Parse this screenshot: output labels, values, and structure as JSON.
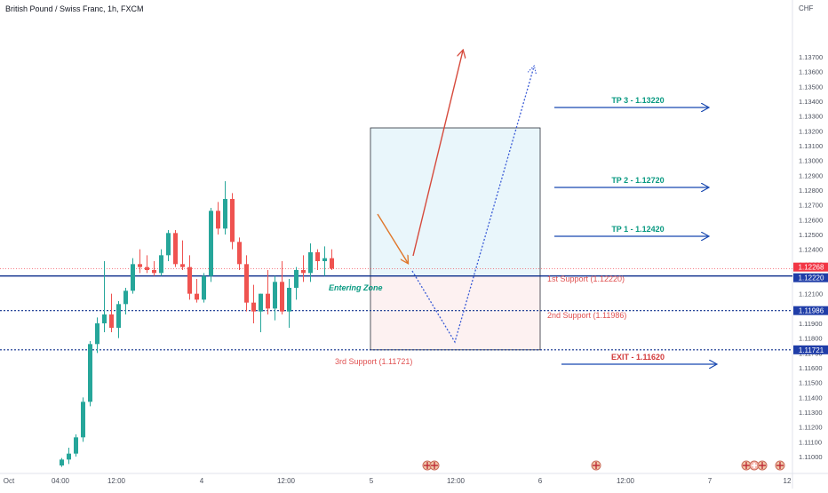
{
  "header": {
    "title": "British Pound / Swiss Franc, 1h, FXCM"
  },
  "colors": {
    "up": "#26a69a",
    "down": "#ef5350",
    "dark_blue": "#0d2e8c",
    "line_blue": "#1848b0",
    "tp_teal": "#089981",
    "support_red": "#e05252",
    "tp_box_fill": "#e9f6fb",
    "sl_box_fill": "#fdf1f1",
    "price_blue": "#1f3da8",
    "price_red": "#f23645",
    "arrow_red": "#d64a3c",
    "arrow_orange": "#e0762a",
    "dotted_blue": "#3a5bd6"
  },
  "chart_data": {
    "type": "candlestick",
    "currency_label": "CHF",
    "y_axis": {
      "ylim": [
        1.1094,
        1.1388
      ],
      "ticks": [
        "1.13700",
        "1.13600",
        "1.13500",
        "1.13400",
        "1.13300",
        "1.13200",
        "1.13100",
        "1.13000",
        "1.12900",
        "1.12800",
        "1.12700",
        "1.12600",
        "1.12500",
        "1.12400",
        "1.12300",
        "1.12200",
        "1.12100",
        "1.12000",
        "1.11900",
        "1.11800",
        "1.11700",
        "1.11600",
        "1.11500",
        "1.11400",
        "1.11300",
        "1.11200",
        "1.11100",
        "1.11000"
      ]
    },
    "x_axis": {
      "ticks": [
        "Oct",
        "04:00",
        "12:00",
        "4",
        "12:00",
        "5",
        "12:00",
        "6",
        "12:00",
        "7",
        "12"
      ]
    },
    "candles": [
      {
        "o": 1.1094,
        "h": 1.1099,
        "l": 1.1093,
        "c": 1.1098
      },
      {
        "o": 1.1098,
        "h": 1.1106,
        "l": 1.1095,
        "c": 1.1102
      },
      {
        "o": 1.1102,
        "h": 1.1115,
        "l": 1.11,
        "c": 1.1113
      },
      {
        "o": 1.1113,
        "h": 1.114,
        "l": 1.111,
        "c": 1.1137
      },
      {
        "o": 1.1137,
        "h": 1.1178,
        "l": 1.1134,
        "c": 1.1176
      },
      {
        "o": 1.1176,
        "h": 1.1194,
        "l": 1.117,
        "c": 1.119
      },
      {
        "o": 1.119,
        "h": 1.1232,
        "l": 1.1184,
        "c": 1.1196
      },
      {
        "o": 1.1196,
        "h": 1.121,
        "l": 1.1184,
        "c": 1.1187
      },
      {
        "o": 1.1187,
        "h": 1.1205,
        "l": 1.118,
        "c": 1.1203
      },
      {
        "o": 1.1203,
        "h": 1.1214,
        "l": 1.1196,
        "c": 1.1212
      },
      {
        "o": 1.1212,
        "h": 1.1234,
        "l": 1.121,
        "c": 1.123
      },
      {
        "o": 1.123,
        "h": 1.124,
        "l": 1.1224,
        "c": 1.1228
      },
      {
        "o": 1.1228,
        "h": 1.1236,
        "l": 1.1224,
        "c": 1.1226
      },
      {
        "o": 1.1226,
        "h": 1.1232,
        "l": 1.1222,
        "c": 1.1224
      },
      {
        "o": 1.1224,
        "h": 1.124,
        "l": 1.1222,
        "c": 1.1236
      },
      {
        "o": 1.1236,
        "h": 1.1253,
        "l": 1.1232,
        "c": 1.1251
      },
      {
        "o": 1.1251,
        "h": 1.1253,
        "l": 1.1228,
        "c": 1.123
      },
      {
        "o": 1.123,
        "h": 1.1246,
        "l": 1.1226,
        "c": 1.1228
      },
      {
        "o": 1.1228,
        "h": 1.1236,
        "l": 1.1206,
        "c": 1.121
      },
      {
        "o": 1.121,
        "h": 1.122,
        "l": 1.1204,
        "c": 1.1206
      },
      {
        "o": 1.1206,
        "h": 1.1224,
        "l": 1.1204,
        "c": 1.1222
      },
      {
        "o": 1.1222,
        "h": 1.1268,
        "l": 1.1218,
        "c": 1.1266
      },
      {
        "o": 1.1266,
        "h": 1.1272,
        "l": 1.125,
        "c": 1.1254
      },
      {
        "o": 1.1254,
        "h": 1.1286,
        "l": 1.125,
        "c": 1.1274
      },
      {
        "o": 1.1274,
        "h": 1.1278,
        "l": 1.124,
        "c": 1.1245
      },
      {
        "o": 1.1245,
        "h": 1.1248,
        "l": 1.1226,
        "c": 1.123
      },
      {
        "o": 1.123,
        "h": 1.1236,
        "l": 1.1198,
        "c": 1.1204
      },
      {
        "o": 1.1204,
        "h": 1.1216,
        "l": 1.119,
        "c": 1.1198
      },
      {
        "o": 1.1198,
        "h": 1.121,
        "l": 1.1184,
        "c": 1.121
      },
      {
        "o": 1.121,
        "h": 1.1226,
        "l": 1.1196,
        "c": 1.12
      },
      {
        "o": 1.12,
        "h": 1.1222,
        "l": 1.1192,
        "c": 1.1218
      },
      {
        "o": 1.1218,
        "h": 1.1232,
        "l": 1.1196,
        "c": 1.1198
      },
      {
        "o": 1.1198,
        "h": 1.122,
        "l": 1.1187,
        "c": 1.1214
      },
      {
        "o": 1.1214,
        "h": 1.1228,
        "l": 1.1206,
        "c": 1.1226
      },
      {
        "o": 1.1226,
        "h": 1.1236,
        "l": 1.1218,
        "c": 1.1224
      },
      {
        "o": 1.1224,
        "h": 1.1244,
        "l": 1.1218,
        "c": 1.1238
      },
      {
        "o": 1.1238,
        "h": 1.124,
        "l": 1.1226,
        "c": 1.1232
      },
      {
        "o": 1.1232,
        "h": 1.1242,
        "l": 1.1222,
        "c": 1.1234
      },
      {
        "o": 1.1234,
        "h": 1.124,
        "l": 1.1226,
        "c": 1.1227
      }
    ],
    "levels": [
      {
        "name": "entry",
        "price": 1.1222,
        "label": "1.12220"
      },
      {
        "name": "second-support",
        "price": 1.11986,
        "label": "1.11986"
      },
      {
        "name": "third-support",
        "price": 1.11721,
        "label": "1.11721"
      }
    ],
    "current_price": {
      "price": 1.12268,
      "label": "1.12268"
    },
    "annotations": {
      "tp3": "TP 3 - 1.13220",
      "tp2": "TP 2 - 1.12720",
      "tp1": "TP 1 - 1.12420",
      "exit": "EXIT - 1.11620",
      "support1": "1st Support (1.12220)",
      "support2": "2nd Support (1.11986)",
      "support3": "3rd Support (1.11721)",
      "entering_zone": "Entering Zone"
    },
    "trade_box": {
      "top": 1.1322,
      "mid": 1.1222,
      "bottom": 1.11721
    }
  }
}
